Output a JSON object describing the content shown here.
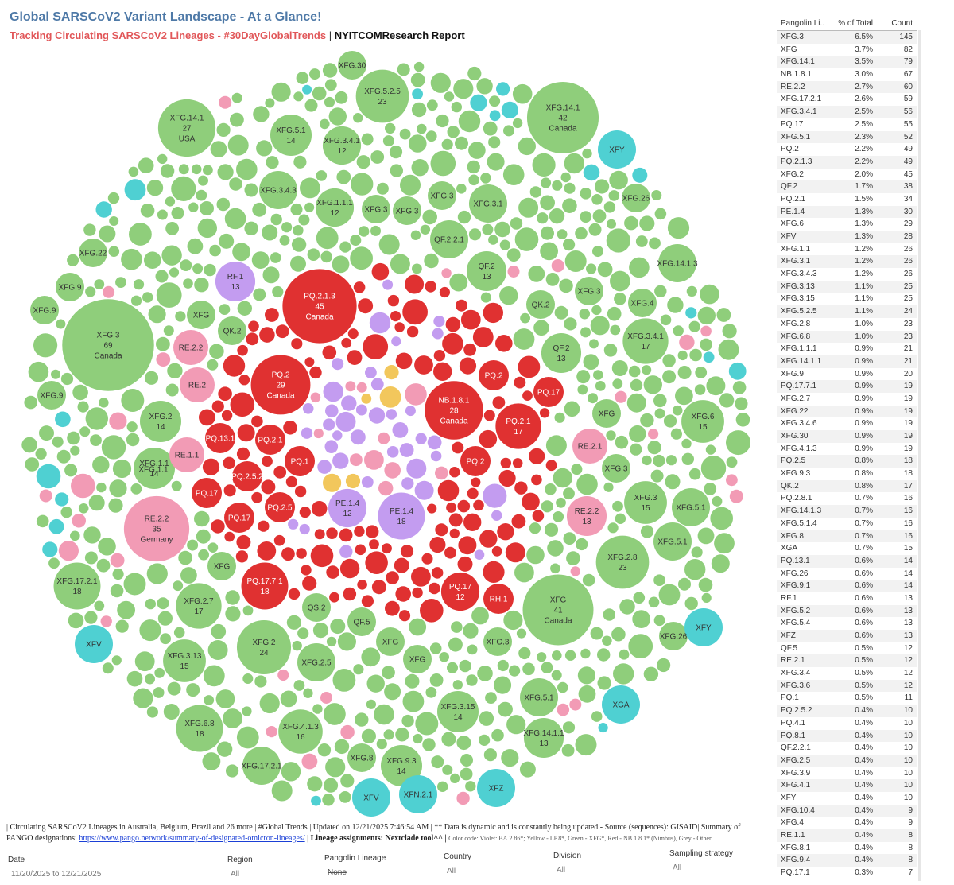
{
  "header": {
    "title": "Global SARSCoV2 Variant Landscape - At a Glance!",
    "subtitle": "Tracking Circulating SARSCoV2 Lineages - #30DayGlobalTrends",
    "separator": "|",
    "report": "NYITCOMResearch Report"
  },
  "colors": {
    "green": "#8fce7b",
    "red": "#e03131",
    "violet": "#c39cf0",
    "yellow": "#f2c75c",
    "pink": "#f29bb5",
    "teal": "#4fd0d2"
  },
  "table": {
    "headers": [
      "Pangolin Li..",
      "% of Total",
      "Count"
    ],
    "rows": [
      [
        "XFG.3",
        "6.5%",
        "145"
      ],
      [
        "XFG",
        "3.7%",
        "82"
      ],
      [
        "XFG.14.1",
        "3.5%",
        "79"
      ],
      [
        "NB.1.8.1",
        "3.0%",
        "67"
      ],
      [
        "RE.2.2",
        "2.7%",
        "60"
      ],
      [
        "XFG.17.2.1",
        "2.6%",
        "59"
      ],
      [
        "XFG.3.4.1",
        "2.5%",
        "56"
      ],
      [
        "PQ.17",
        "2.5%",
        "55"
      ],
      [
        "XFG.5.1",
        "2.3%",
        "52"
      ],
      [
        "PQ.2",
        "2.2%",
        "49"
      ],
      [
        "PQ.2.1.3",
        "2.2%",
        "49"
      ],
      [
        "XFG.2",
        "2.0%",
        "45"
      ],
      [
        "QF.2",
        "1.7%",
        "38"
      ],
      [
        "PQ.2.1",
        "1.5%",
        "34"
      ],
      [
        "PE.1.4",
        "1.3%",
        "30"
      ],
      [
        "XFG.6",
        "1.3%",
        "29"
      ],
      [
        "XFV",
        "1.3%",
        "28"
      ],
      [
        "XFG.1.1",
        "1.2%",
        "26"
      ],
      [
        "XFG.3.1",
        "1.2%",
        "26"
      ],
      [
        "XFG.3.4.3",
        "1.2%",
        "26"
      ],
      [
        "XFG.3.13",
        "1.1%",
        "25"
      ],
      [
        "XFG.3.15",
        "1.1%",
        "25"
      ],
      [
        "XFG.5.2.5",
        "1.1%",
        "24"
      ],
      [
        "XFG.2.8",
        "1.0%",
        "23"
      ],
      [
        "XFG.6.8",
        "1.0%",
        "23"
      ],
      [
        "XFG.1.1.1",
        "0.9%",
        "21"
      ],
      [
        "XFG.14.1.1",
        "0.9%",
        "21"
      ],
      [
        "XFG.9",
        "0.9%",
        "20"
      ],
      [
        "PQ.17.7.1",
        "0.9%",
        "19"
      ],
      [
        "XFG.2.7",
        "0.9%",
        "19"
      ],
      [
        "XFG.22",
        "0.9%",
        "19"
      ],
      [
        "XFG.3.4.6",
        "0.9%",
        "19"
      ],
      [
        "XFG.30",
        "0.9%",
        "19"
      ],
      [
        "XFG.4.1.3",
        "0.9%",
        "19"
      ],
      [
        "PQ.2.5",
        "0.8%",
        "18"
      ],
      [
        "XFG.9.3",
        "0.8%",
        "18"
      ],
      [
        "QK.2",
        "0.8%",
        "17"
      ],
      [
        "PQ.2.8.1",
        "0.7%",
        "16"
      ],
      [
        "XFG.14.1.3",
        "0.7%",
        "16"
      ],
      [
        "XFG.5.1.4",
        "0.7%",
        "16"
      ],
      [
        "XFG.8",
        "0.7%",
        "16"
      ],
      [
        "XGA",
        "0.7%",
        "15"
      ],
      [
        "PQ.13.1",
        "0.6%",
        "14"
      ],
      [
        "XFG.26",
        "0.6%",
        "14"
      ],
      [
        "XFG.9.1",
        "0.6%",
        "14"
      ],
      [
        "RF.1",
        "0.6%",
        "13"
      ],
      [
        "XFG.5.2",
        "0.6%",
        "13"
      ],
      [
        "XFG.5.4",
        "0.6%",
        "13"
      ],
      [
        "XFZ",
        "0.6%",
        "13"
      ],
      [
        "QF.5",
        "0.5%",
        "12"
      ],
      [
        "RE.2.1",
        "0.5%",
        "12"
      ],
      [
        "XFG.3.4",
        "0.5%",
        "12"
      ],
      [
        "XFG.3.6",
        "0.5%",
        "12"
      ],
      [
        "PQ.1",
        "0.5%",
        "11"
      ],
      [
        "PQ.2.5.2",
        "0.4%",
        "10"
      ],
      [
        "PQ.4.1",
        "0.4%",
        "10"
      ],
      [
        "PQ.8.1",
        "0.4%",
        "10"
      ],
      [
        "QF.2.2.1",
        "0.4%",
        "10"
      ],
      [
        "XFG.2.5",
        "0.4%",
        "10"
      ],
      [
        "XFG.3.9",
        "0.4%",
        "10"
      ],
      [
        "XFG.4.1",
        "0.4%",
        "10"
      ],
      [
        "XFY",
        "0.4%",
        "10"
      ],
      [
        "XFG.10.4",
        "0.4%",
        "9"
      ],
      [
        "XFG.4",
        "0.4%",
        "9"
      ],
      [
        "RE.1.1",
        "0.4%",
        "8"
      ],
      [
        "XFG.8.1",
        "0.4%",
        "8"
      ],
      [
        "XFG.9.4",
        "0.4%",
        "8"
      ],
      [
        "PQ.17.1",
        "0.3%",
        "7"
      ]
    ]
  },
  "footer": {
    "line1": "| Circulating SARSCoV2 Lineages in Australia, Belgium, Brazil and 26 more | #Global Trends | Updated on 12/21/2025 7:46:54 AM | ** Data is dynamic and is constantly being updated - Source (sequences): GISAID| Summary of",
    "line2_prefix": "PANGO designations:",
    "link": "https://www.pango.network/summary-of-designated-omicron-lineages/",
    "line2_sep": "|",
    "nextclade": "Lineage assignments: Nextclade tool^^ |",
    "color_code": "Color code: Violet: BA.2.86*; Yellow - LP.8*, Green - XFG*, Red - NB.1.8.1* (Nimbus),  Grey - Other"
  },
  "filters": [
    {
      "label": "Date",
      "value": "11/20/2025 to 12/21/2025"
    },
    {
      "label": "Region",
      "value": "All"
    },
    {
      "label": "Pangolin Lineage",
      "value": "None"
    },
    {
      "label": "Country",
      "value": "All"
    },
    {
      "label": "Division",
      "value": "All"
    },
    {
      "label": "Sampling strategy",
      "value": "All"
    }
  ],
  "chart_data": {
    "type": "packed-bubble",
    "size_measure": "Count",
    "labeled_bubbles": [
      {
        "name": "XFG.3",
        "count": 69,
        "country": "Canada",
        "color": "green"
      },
      {
        "name": "PQ.2.1.3",
        "count": 45,
        "country": "Canada",
        "color": "red"
      },
      {
        "name": "XFG.14.1",
        "count": 42,
        "country": "Canada",
        "color": "green"
      },
      {
        "name": "XFG",
        "count": 41,
        "country": "Canada",
        "color": "green"
      },
      {
        "name": "RE.2.2",
        "count": 35,
        "country": "Germany",
        "color": "pink"
      },
      {
        "name": "PQ.2",
        "count": 29,
        "country": "Canada",
        "color": "red"
      },
      {
        "name": "NB.1.8.1",
        "count": 28,
        "country": "Canada",
        "color": "red"
      },
      {
        "name": "XFG.14.1",
        "count": 27,
        "country": "USA",
        "color": "green"
      },
      {
        "name": "XFG.2",
        "count": 24,
        "color": "green"
      },
      {
        "name": "XFG.2.8",
        "count": 23,
        "color": "green"
      },
      {
        "name": "XFG.5.2.5",
        "count": 23,
        "color": "green"
      },
      {
        "name": "XFG.6.8",
        "count": 18,
        "color": "green"
      },
      {
        "name": "XFG.17.2.1",
        "count": 18,
        "color": "green"
      },
      {
        "name": "PQ.17.7.1",
        "count": 18,
        "color": "red"
      },
      {
        "name": "PE.1.4",
        "count": 18,
        "color": "violet"
      },
      {
        "name": "XFG.3.4.1",
        "count": 17,
        "color": "green"
      },
      {
        "name": "XFG.2.7",
        "count": 17,
        "color": "green"
      },
      {
        "name": "PQ.2.1",
        "count": 17,
        "color": "red"
      },
      {
        "name": "XFG.4.1.3",
        "count": 16,
        "color": "green"
      },
      {
        "name": "XFG.3",
        "count": 15,
        "color": "green"
      },
      {
        "name": "XFG.6",
        "count": 15,
        "color": "green"
      },
      {
        "name": "XFG.3.13",
        "count": 15,
        "color": "green"
      },
      {
        "name": "XFG.2",
        "count": 14,
        "color": "green"
      },
      {
        "name": "XFG.1.1",
        "count": 14,
        "color": "green"
      },
      {
        "name": "XFG.5.1",
        "count": 14,
        "color": "green"
      },
      {
        "name": "XFG.3.15",
        "count": 14,
        "color": "green"
      },
      {
        "name": "XFG.9.3",
        "count": 14,
        "color": "green"
      },
      {
        "name": "QF.2",
        "count": 13,
        "color": "green"
      },
      {
        "name": "XFG.14.1.1",
        "count": 13,
        "color": "green"
      },
      {
        "name": "RF.1",
        "count": 13,
        "color": "violet"
      },
      {
        "name": "RE.2.2",
        "count": 13,
        "color": "pink"
      },
      {
        "name": "PE.1.4",
        "count": 12,
        "color": "violet"
      },
      {
        "name": "PQ.17",
        "count": 12,
        "color": "red"
      },
      {
        "name": "XFG.3.4.1",
        "count": 12,
        "color": "green"
      },
      {
        "name": "XFG.1.1.1",
        "count": 12,
        "color": "green"
      },
      {
        "name": "QF.2",
        "count": 13,
        "color": "green"
      }
    ]
  }
}
